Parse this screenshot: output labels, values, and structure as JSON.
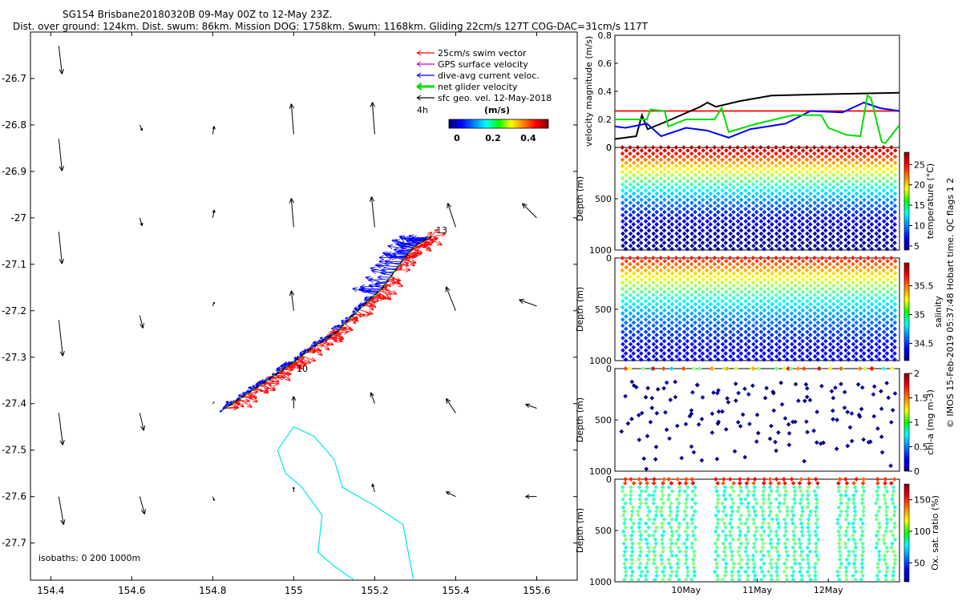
{
  "header": {
    "title_line1": "SG154 Brisbane20180320B 09-May 00Z to 12-May 23Z.",
    "title_line2": "Dist. over ground: 124km. Dist. swum: 86km. Mission DOG: 1758km. Swum: 1168km. Gliding 22cm/s 127T COG-DAC=31cm/s 117T"
  },
  "side_note": "© IMOS 15-Feb-2019 05:37:48 Hobart time. QC flags 1  2",
  "colors": {
    "swim": "#ff0000",
    "gps": "#cc00cc",
    "dac": "#0000ff",
    "net": "#00dd00",
    "sfc": "#000000",
    "isobath": "#00e5ee",
    "reference": "#ff0000"
  },
  "chart_data": [
    {
      "type": "scatter",
      "name": "map",
      "xlim": [
        154.35,
        155.7
      ],
      "ylim": [
        -27.78,
        -26.6
      ],
      "xticks": [
        154.4,
        154.6,
        154.8,
        155,
        155.2,
        155.4,
        155.6
      ],
      "xtick_labels": [
        "154.4",
        "154.6",
        "154.8",
        "155",
        "155.2",
        "155.4",
        "155.6"
      ],
      "yticks": [
        -26.7,
        -26.8,
        -26.9,
        -27,
        -27.1,
        -27.2,
        -27.3,
        -27.4,
        -27.5,
        -27.6,
        -27.7
      ],
      "ytick_labels": [
        "-26.7",
        "-26.8",
        "-26.9",
        "-27",
        "-27.1",
        "-27.2",
        "-27.3",
        "-27.4",
        "-27.5",
        "-27.6",
        "-27.7"
      ],
      "legend": [
        {
          "label": "25cm/s swim vector",
          "color": "#ff0000"
        },
        {
          "label": "GPS surface velocity",
          "color": "#cc00cc"
        },
        {
          "label": "dive-avg current veloc.",
          "color": "#0000ff"
        },
        {
          "label": "net glider velocity",
          "color": "#00dd00"
        },
        {
          "label": "sfc geo. vel. 12-May-2018",
          "color": "#000000"
        }
      ],
      "legend_note": "4h",
      "colorbar": {
        "label": "(m/s)",
        "ticks": [
          0,
          0.2,
          0.4
        ],
        "tick_labels": [
          "0",
          "0.2",
          "0.4"
        ],
        "range": [
          0,
          0.5
        ]
      },
      "isobaths_label": "isobaths: 0   200  1000m",
      "annotations": [
        {
          "text": "13",
          "lon": 155.34,
          "lat": -27.04
        },
        {
          "text": "10",
          "lon": 155.03,
          "lat": -27.33
        }
      ],
      "track": [
        [
          154.83,
          -27.41
        ],
        [
          154.9,
          -27.37
        ],
        [
          154.95,
          -27.34
        ],
        [
          155.0,
          -27.31
        ],
        [
          155.06,
          -27.27
        ],
        [
          155.1,
          -27.25
        ],
        [
          155.17,
          -27.19
        ],
        [
          155.22,
          -27.15
        ],
        [
          155.27,
          -27.09
        ],
        [
          155.3,
          -27.06
        ],
        [
          155.34,
          -27.04
        ]
      ],
      "sfc_vectors": [
        {
          "lon": 154.42,
          "lat": -26.63,
          "u": 0.04,
          "v": -0.35
        },
        {
          "lon": 154.42,
          "lat": -26.83,
          "u": 0.04,
          "v": -0.4
        },
        {
          "lon": 154.62,
          "lat": -26.8,
          "u": 0.03,
          "v": -0.07
        },
        {
          "lon": 154.8,
          "lat": -26.82,
          "u": 0.02,
          "v": 0.1
        },
        {
          "lon": 155.0,
          "lat": -26.82,
          "u": -0.03,
          "v": 0.38
        },
        {
          "lon": 155.2,
          "lat": -26.82,
          "u": -0.03,
          "v": 0.4
        },
        {
          "lon": 154.42,
          "lat": -27.03,
          "u": 0.04,
          "v": -0.4
        },
        {
          "lon": 154.62,
          "lat": -27.0,
          "u": 0.03,
          "v": -0.1
        },
        {
          "lon": 154.8,
          "lat": -27.0,
          "u": 0.02,
          "v": 0.1
        },
        {
          "lon": 155.0,
          "lat": -27.02,
          "u": -0.03,
          "v": 0.36
        },
        {
          "lon": 155.2,
          "lat": -27.02,
          "u": -0.04,
          "v": 0.38
        },
        {
          "lon": 155.4,
          "lat": -27.02,
          "u": -0.1,
          "v": 0.3
        },
        {
          "lon": 155.6,
          "lat": -27.0,
          "u": -0.18,
          "v": 0.18
        },
        {
          "lon": 154.42,
          "lat": -27.22,
          "u": 0.05,
          "v": -0.45
        },
        {
          "lon": 154.62,
          "lat": -27.21,
          "u": 0.04,
          "v": -0.16
        },
        {
          "lon": 154.8,
          "lat": -27.19,
          "u": 0.02,
          "v": 0.05
        },
        {
          "lon": 155.0,
          "lat": -27.2,
          "u": -0.03,
          "v": 0.25
        },
        {
          "lon": 155.4,
          "lat": -27.2,
          "u": -0.12,
          "v": 0.3
        },
        {
          "lon": 155.6,
          "lat": -27.19,
          "u": -0.22,
          "v": 0.08
        },
        {
          "lon": 154.42,
          "lat": -27.42,
          "u": 0.05,
          "v": -0.4
        },
        {
          "lon": 154.62,
          "lat": -27.42,
          "u": 0.05,
          "v": -0.22
        },
        {
          "lon": 154.8,
          "lat": -27.4,
          "u": 0.02,
          "v": 0.02
        },
        {
          "lon": 155.0,
          "lat": -27.41,
          "u": 0.0,
          "v": 0.15
        },
        {
          "lon": 155.2,
          "lat": -27.4,
          "u": -0.05,
          "v": 0.14
        },
        {
          "lon": 155.4,
          "lat": -27.42,
          "u": -0.12,
          "v": 0.18
        },
        {
          "lon": 155.6,
          "lat": -27.41,
          "u": -0.14,
          "v": 0.05
        },
        {
          "lon": 154.42,
          "lat": -27.6,
          "u": 0.06,
          "v": -0.35
        },
        {
          "lon": 154.62,
          "lat": -27.6,
          "u": 0.06,
          "v": -0.22
        },
        {
          "lon": 154.8,
          "lat": -27.6,
          "u": 0.02,
          "v": -0.05
        },
        {
          "lon": 155.0,
          "lat": -27.59,
          "u": 0.0,
          "v": 0.06
        },
        {
          "lon": 155.2,
          "lat": -27.59,
          "u": -0.03,
          "v": 0.1
        },
        {
          "lon": 155.4,
          "lat": -27.6,
          "u": -0.12,
          "v": 0.06
        },
        {
          "lon": 155.6,
          "lat": -27.6,
          "u": -0.14,
          "v": 0.0
        }
      ],
      "isobath_1000m": [
        [
          155.0,
          -27.45
        ],
        [
          155.05,
          -27.47
        ],
        [
          155.1,
          -27.52
        ],
        [
          155.12,
          -27.58
        ],
        [
          155.2,
          -27.62
        ],
        [
          155.27,
          -27.66
        ],
        [
          155.3,
          -27.8
        ]
      ],
      "isobath_1000m_west": [
        [
          155.0,
          -27.45
        ],
        [
          154.96,
          -27.5
        ],
        [
          154.98,
          -27.55
        ],
        [
          155.02,
          -27.58
        ],
        [
          155.07,
          -27.64
        ],
        [
          155.06,
          -27.72
        ],
        [
          155.1,
          -27.75
        ],
        [
          155.15,
          -27.78
        ]
      ]
    },
    {
      "type": "line",
      "name": "velocity",
      "ylabel": "velocity magnitude (m/s)",
      "xlim": [
        0,
        4
      ],
      "ylim": [
        0,
        0.8
      ],
      "yticks": [
        0,
        0.2,
        0.4,
        0.6,
        0.8
      ],
      "ytick_labels": [
        "0",
        "0.2",
        "0.4",
        "0.6",
        "0.8"
      ],
      "reference_line": 0.26,
      "series": [
        {
          "name": "sfc geo. vel.",
          "color": "#000000",
          "x": [
            0,
            0.3,
            0.38,
            0.46,
            0.7,
            1.2,
            1.3,
            1.42,
            1.75,
            2.2,
            3.0,
            4.0
          ],
          "y": [
            0.06,
            0.08,
            0.23,
            0.13,
            0.18,
            0.29,
            0.32,
            0.29,
            0.33,
            0.37,
            0.38,
            0.39
          ]
        },
        {
          "name": "dive-avg current",
          "color": "#0000ff",
          "x": [
            0,
            0.15,
            0.45,
            0.65,
            1.0,
            1.3,
            1.6,
            1.9,
            2.4,
            2.75,
            3.2,
            3.5,
            3.73,
            4.0
          ],
          "y": [
            0.15,
            0.14,
            0.17,
            0.08,
            0.14,
            0.12,
            0.07,
            0.13,
            0.17,
            0.26,
            0.25,
            0.32,
            0.28,
            0.26
          ]
        },
        {
          "name": "net glider velocity",
          "color": "#00dd00",
          "x": [
            0,
            0.45,
            0.5,
            0.7,
            0.75,
            1.0,
            1.4,
            1.5,
            1.6,
            2.0,
            2.5,
            2.9,
            3.0,
            3.25,
            3.45,
            3.55,
            3.6,
            3.75,
            3.8,
            4.0
          ],
          "y": [
            0.2,
            0.2,
            0.27,
            0.26,
            0.15,
            0.2,
            0.2,
            0.28,
            0.11,
            0.17,
            0.23,
            0.23,
            0.14,
            0.09,
            0.08,
            0.37,
            0.35,
            0.04,
            0.03,
            0.16
          ]
        }
      ]
    },
    {
      "type": "scatter",
      "name": "temperature",
      "ylabel": "Depth (m)",
      "xlim": [
        0,
        4
      ],
      "ylim": [
        1000,
        0
      ],
      "yticks": [
        0,
        500,
        1000
      ],
      "ytick_labels": [
        "0",
        "500",
        "1000"
      ],
      "colorbar": {
        "label": "temperature (°C)",
        "range": [
          4,
          28
        ],
        "ticks": [
          5,
          10,
          15,
          20,
          25
        ],
        "tick_labels": [
          "5",
          "10",
          "15",
          "20",
          "25"
        ]
      },
      "profile": {
        "n_profiles": 36,
        "max_depth": 990,
        "surface_value": 27,
        "bottom_value": 4.5
      }
    },
    {
      "type": "scatter",
      "name": "salinity",
      "ylabel": "Depth (m)",
      "xlim": [
        0,
        4
      ],
      "ylim": [
        1000,
        0
      ],
      "yticks": [
        0,
        500,
        1000
      ],
      "ytick_labels": [
        "0",
        "500",
        "1000"
      ],
      "colorbar": {
        "label": "salinity",
        "range": [
          34.2,
          35.9
        ],
        "ticks": [
          34.5,
          35,
          35.5
        ],
        "tick_labels": [
          "34.5",
          "35",
          "35.5"
        ]
      },
      "profile": {
        "n_profiles": 36,
        "max_depth": 990,
        "surface_value": 35.65,
        "bottom_value": 34.4
      }
    },
    {
      "type": "scatter",
      "name": "chlorophyll",
      "ylabel": "Depth (m)",
      "xlim": [
        0,
        4
      ],
      "ylim": [
        1000,
        0
      ],
      "yticks": [
        0,
        500,
        1000
      ],
      "ytick_labels": [
        "0",
        "500",
        "1000"
      ],
      "colorbar": {
        "label": "chl-a (mg m-3)",
        "range": [
          0,
          2
        ],
        "ticks": [
          0,
          0.5,
          1,
          1.5,
          2
        ],
        "tick_labels": [
          "0",
          "0.5",
          "1",
          "1.5",
          "2"
        ]
      },
      "profile": {
        "n_profiles": 36,
        "max_depth": 980,
        "surface_value": 1.2,
        "bottom_value": 0.02
      }
    },
    {
      "type": "scatter",
      "name": "oxygen",
      "ylabel": "Depth (m)",
      "xlim": [
        0,
        4
      ],
      "ylim": [
        1000,
        0
      ],
      "yticks": [
        0,
        500,
        1000
      ],
      "ytick_labels": [
        "0",
        "500",
        "1000"
      ],
      "xticks": [
        1.0,
        2.0,
        3.0
      ],
      "xtick_labels": [
        "10May",
        "11May",
        "12May"
      ],
      "colorbar": {
        "label": "Ox. sat. ratio (%)",
        "range": [
          20,
          175
        ],
        "ticks": [
          50,
          100,
          150
        ],
        "tick_labels": [
          "50",
          "100",
          "150"
        ]
      },
      "profile": {
        "n_profiles": 36,
        "max_depth": 980,
        "surface_value": 155,
        "bottom_value": 55
      }
    }
  ]
}
